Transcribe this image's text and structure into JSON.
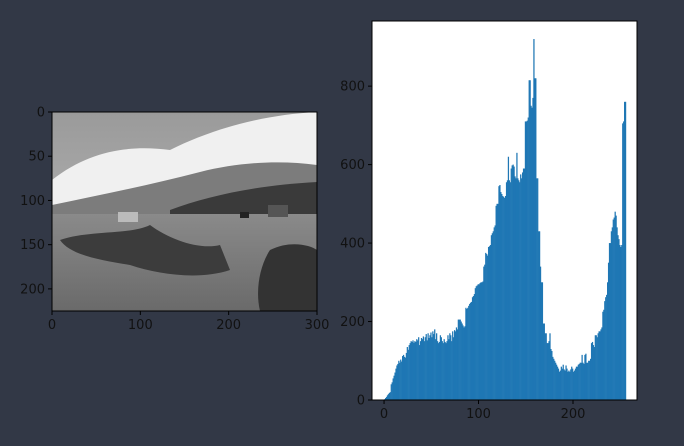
{
  "figure": {
    "background": "#323846"
  },
  "chart_data": [
    {
      "type": "image",
      "image_description_colors": "grayscale",
      "xlim": [
        0,
        300
      ],
      "ylim": [
        225,
        0
      ],
      "xticks": [
        0,
        100,
        200,
        300
      ],
      "yticks": [
        0,
        50,
        100,
        150,
        200
      ],
      "xtick_labels": [
        "0",
        "100",
        "200",
        "300"
      ],
      "ytick_labels": [
        "0",
        "50",
        "100",
        "150",
        "200"
      ]
    },
    {
      "type": "bar",
      "bar_color": "#1f77b4",
      "bin_start": 0,
      "bin_width": 1,
      "xlim": [
        -12.75,
        267.75
      ],
      "ylim": [
        0,
        966
      ],
      "xticks": [
        0,
        100,
        200
      ],
      "yticks": [
        0,
        200,
        400,
        600,
        800
      ],
      "xtick_labels": [
        "0",
        "100",
        "200"
      ],
      "ytick_labels": [
        "0",
        "200",
        "400",
        "600",
        "800"
      ],
      "values": [
        2,
        5,
        8,
        12,
        15,
        18,
        20,
        40,
        45,
        55,
        62,
        70,
        80,
        88,
        92,
        100,
        95,
        103,
        98,
        112,
        115,
        110,
        108,
        120,
        135,
        128,
        140,
        145,
        150,
        148,
        152,
        146,
        150,
        148,
        155,
        152,
        160,
        140,
        150,
        158,
        155,
        162,
        150,
        160,
        168,
        152,
        170,
        158,
        165,
        172,
        160,
        175,
        168,
        180,
        155,
        170,
        150,
        145,
        148,
        165,
        160,
        150,
        145,
        155,
        148,
        145,
        150,
        165,
        155,
        170,
        165,
        150,
        175,
        160,
        178,
        175,
        185,
        180,
        205,
        205,
        205,
        200,
        195,
        190,
        185,
        188,
        235,
        232,
        235,
        240,
        245,
        248,
        250,
        262,
        265,
        270,
        285,
        290,
        292,
        295,
        295,
        298,
        300,
        300,
        302,
        340,
        345,
        375,
        372,
        368,
        390,
        392,
        395,
        420,
        425,
        430,
        440,
        445,
        495,
        500,
        500,
        545,
        548,
        530,
        525,
        520,
        518,
        515,
        520,
        555,
        560,
        620,
        560,
        555,
        590,
        598,
        600,
        595,
        570,
        565,
        630,
        565,
        560,
        555,
        575,
        565,
        580,
        590,
        590,
        710,
        710,
        712,
        720,
        815,
        815,
        750,
        745,
        770,
        920,
        820,
        820,
        565,
        565,
        430,
        430,
        340,
        300,
        300,
        195,
        195,
        170,
        170,
        145,
        145,
        150,
        170,
        130,
        125,
        110,
        105,
        100,
        95,
        90,
        85,
        80,
        72,
        75,
        85,
        80,
        90,
        78,
        75,
        88,
        80,
        72,
        75,
        72,
        78,
        85,
        80,
        72,
        75,
        80,
        85,
        85,
        90,
        92,
        95,
        95,
        115,
        95,
        92,
        115,
        118,
        95,
        95,
        100,
        100,
        105,
        145,
        148,
        140,
        135,
        165,
        165,
        160,
        170,
        175,
        175,
        180,
        185,
        225,
        230,
        252,
        262,
        268,
        300,
        350,
        400,
        400,
        430,
        440,
        460,
        465,
        480,
        470,
        440,
        420,
        410,
        395,
        390,
        395,
        705,
        710,
        760,
        760
      ]
    }
  ]
}
